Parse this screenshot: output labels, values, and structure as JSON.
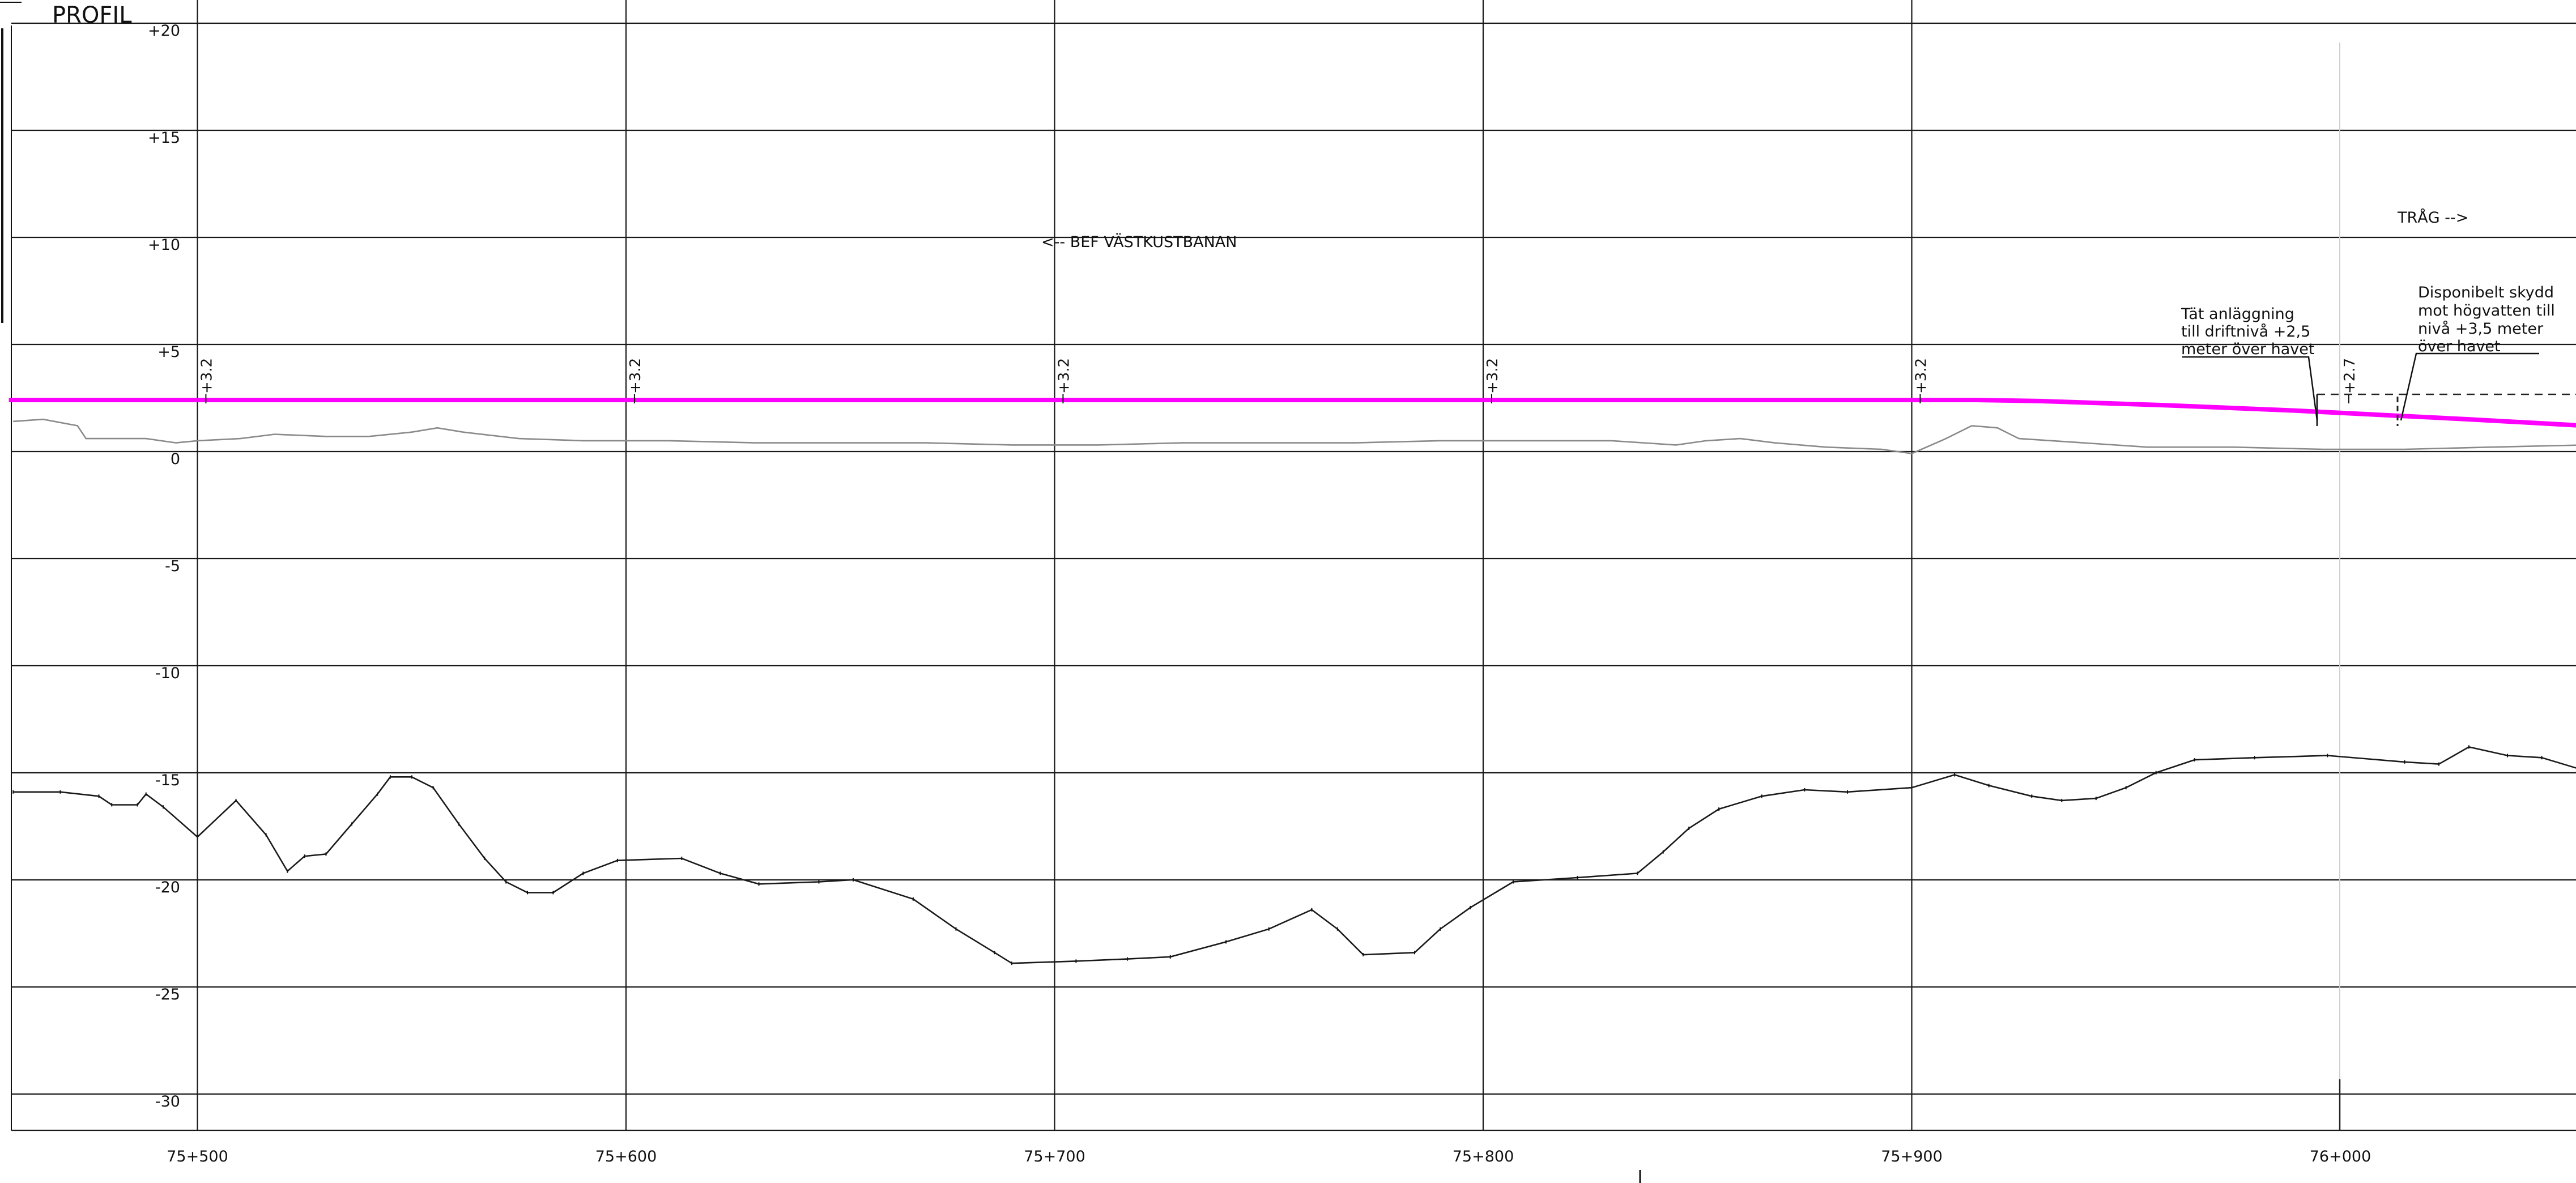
{
  "title": "PROFIL",
  "colors": {
    "design_line": "#ff00ff",
    "ground_line": "#8a8a8a",
    "seabed_line": "#1a1a1a",
    "grid": "#1a1a1a"
  },
  "chart_data": {
    "type": "line",
    "y_range": [
      -32,
      21
    ],
    "x_range": [
      75456.4,
      76056.4
    ],
    "y_ticks": [
      "+20",
      "+15",
      "+10",
      "+5",
      "0",
      "-5",
      "-10",
      "-15",
      "-20",
      "-25",
      "-30"
    ],
    "y_tick_values": [
      20,
      15,
      10,
      5,
      0,
      -5,
      -10,
      -15,
      -20,
      -25,
      -30
    ],
    "x_ticks": [
      "75+500",
      "75+600",
      "75+700",
      "75+800",
      "75+900",
      "76+000"
    ],
    "x_tick_values": [
      75500,
      75600,
      75700,
      75800,
      75900,
      76000
    ],
    "level_marks": [
      {
        "x": 75502.5,
        "label": "+3.2"
      },
      {
        "x": 75602.5,
        "label": "+3.2"
      },
      {
        "x": 75702.5,
        "label": "+3.2"
      },
      {
        "x": 75802.5,
        "label": "+3.2"
      },
      {
        "x": 75902.5,
        "label": "+3.2"
      },
      {
        "x": 76002.5,
        "label": "+2.7"
      }
    ],
    "series": [
      {
        "role": "design",
        "points": [
          [
            75456,
            3.2
          ],
          [
            75915,
            3.2
          ],
          [
            75930,
            3.15
          ],
          [
            75960,
            2.95
          ],
          [
            75990,
            2.7
          ],
          [
            76030,
            2.3
          ],
          [
            76057,
            2.0
          ]
        ]
      },
      {
        "role": "ground",
        "points": [
          [
            75457,
            2.2
          ],
          [
            75464,
            2.3
          ],
          [
            75472,
            2.0
          ],
          [
            75474,
            1.4
          ],
          [
            75480,
            1.4
          ],
          [
            75488,
            1.4
          ],
          [
            75495,
            1.2
          ],
          [
            75500,
            1.3
          ],
          [
            75510,
            1.4
          ],
          [
            75518,
            1.6
          ],
          [
            75530,
            1.5
          ],
          [
            75540,
            1.5
          ],
          [
            75550,
            1.7
          ],
          [
            75556,
            1.9
          ],
          [
            75562,
            1.7
          ],
          [
            75575,
            1.4
          ],
          [
            75590,
            1.3
          ],
          [
            75610,
            1.3
          ],
          [
            75630,
            1.2
          ],
          [
            75650,
            1.2
          ],
          [
            75670,
            1.2
          ],
          [
            75690,
            1.1
          ],
          [
            75710,
            1.1
          ],
          [
            75730,
            1.2
          ],
          [
            75750,
            1.2
          ],
          [
            75770,
            1.2
          ],
          [
            75790,
            1.3
          ],
          [
            75810,
            1.3
          ],
          [
            75830,
            1.3
          ],
          [
            75845,
            1.1
          ],
          [
            75852,
            1.3
          ],
          [
            75860,
            1.4
          ],
          [
            75868,
            1.2
          ],
          [
            75880,
            1.0
          ],
          [
            75893,
            0.9
          ],
          [
            75900,
            0.7
          ],
          [
            75908,
            1.4
          ],
          [
            75914,
            2.0
          ],
          [
            75920,
            1.9
          ],
          [
            75925,
            1.4
          ],
          [
            75940,
            1.2
          ],
          [
            75955,
            1.0
          ],
          [
            75975,
            1.0
          ],
          [
            75996,
            0.9
          ],
          [
            76015,
            0.9
          ],
          [
            76035,
            1.0
          ],
          [
            76057,
            1.1
          ]
        ]
      },
      {
        "role": "seabed",
        "points": [
          [
            75457,
            -15.1
          ],
          [
            75468,
            -15.1
          ],
          [
            75477,
            -15.3
          ],
          [
            75480,
            -15.7
          ],
          [
            75486,
            -15.7
          ],
          [
            75488,
            -15.2
          ],
          [
            75492,
            -15.8
          ],
          [
            75500,
            -17.2
          ],
          [
            75509,
            -15.5
          ],
          [
            75516,
            -17.1
          ],
          [
            75521,
            -18.8
          ],
          [
            75525,
            -18.1
          ],
          [
            75530,
            -18.0
          ],
          [
            75536,
            -16.6
          ],
          [
            75542,
            -15.2
          ],
          [
            75545,
            -14.4
          ],
          [
            75550,
            -14.4
          ],
          [
            75555,
            -14.9
          ],
          [
            75561,
            -16.6
          ],
          [
            75567,
            -18.2
          ],
          [
            75572,
            -19.3
          ],
          [
            75577,
            -19.8
          ],
          [
            75583,
            -19.8
          ],
          [
            75590,
            -18.9
          ],
          [
            75598,
            -18.3
          ],
          [
            75613,
            -18.2
          ],
          [
            75622,
            -18.9
          ],
          [
            75631,
            -19.4
          ],
          [
            75645,
            -19.3
          ],
          [
            75653,
            -19.2
          ],
          [
            75667,
            -20.1
          ],
          [
            75677,
            -21.5
          ],
          [
            75686,
            -22.6
          ],
          [
            75690,
            -23.1
          ],
          [
            75705,
            -23.0
          ],
          [
            75717,
            -22.9
          ],
          [
            75727,
            -22.8
          ],
          [
            75740,
            -22.1
          ],
          [
            75750,
            -21.5
          ],
          [
            75760,
            -20.6
          ],
          [
            75766,
            -21.5
          ],
          [
            75772,
            -22.7
          ],
          [
            75784,
            -22.6
          ],
          [
            75790,
            -21.5
          ],
          [
            75797,
            -20.5
          ],
          [
            75807,
            -19.3
          ],
          [
            75822,
            -19.1
          ],
          [
            75836,
            -18.9
          ],
          [
            75842,
            -17.9
          ],
          [
            75848,
            -16.8
          ],
          [
            75855,
            -15.9
          ],
          [
            75865,
            -15.3
          ],
          [
            75875,
            -15.0
          ],
          [
            75885,
            -15.1
          ],
          [
            75900,
            -14.9
          ],
          [
            75910,
            -14.3
          ],
          [
            75918,
            -14.8
          ],
          [
            75928,
            -15.3
          ],
          [
            75935,
            -15.5
          ],
          [
            75943,
            -15.4
          ],
          [
            75950,
            -14.9
          ],
          [
            75957,
            -14.2
          ],
          [
            75966,
            -13.6
          ],
          [
            75980,
            -13.5
          ],
          [
            75997,
            -13.4
          ],
          [
            76015,
            -13.7
          ],
          [
            76023,
            -13.8
          ],
          [
            76030,
            -13.0
          ],
          [
            76039,
            -13.4
          ],
          [
            76047,
            -13.5
          ],
          [
            76057,
            -14.1
          ]
        ]
      }
    ]
  },
  "annotations": {
    "bef_vastkustbanan": "<-- BEF VÄSTKUSTBANAN",
    "trag": "TRÅG -->",
    "tat_anlaggning": [
      "Tät anläggning",
      "till driftnivå +2,5",
      "meter över havet"
    ],
    "disponibelt_skydd": [
      "Disponibelt skydd",
      "mot högvatten till",
      "nivå +3,5 meter",
      "över havet"
    ]
  }
}
